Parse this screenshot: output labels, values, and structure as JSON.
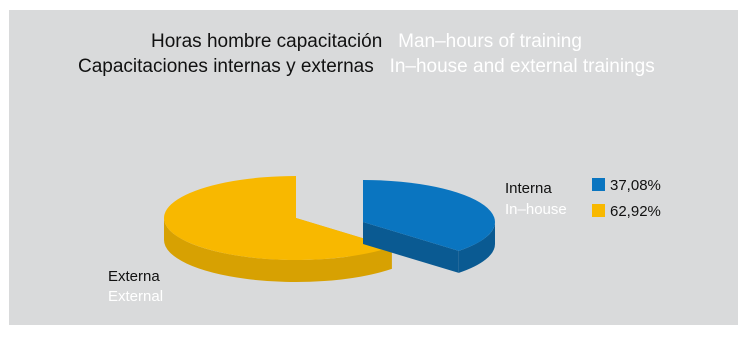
{
  "title": {
    "line1_es": "Horas hombre capacitación",
    "line1_en": "Man–hours of training",
    "line2_es": "Capacitaciones internas y externas",
    "line2_en": "In–house and external trainings"
  },
  "colors": {
    "interna": "#0a75c0",
    "interna_side": "#0a5a92",
    "externa": "#f8b800",
    "externa_side": "#d7a102",
    "background": "#d9dadb"
  },
  "chart_data": {
    "type": "pie",
    "three_d": true,
    "slices": [
      {
        "label_es": "Interna",
        "label_en": "In–house",
        "value": 37.08,
        "value_label": "37,08%"
      },
      {
        "label_es": "Externa",
        "label_en": "External",
        "value": 62.92,
        "value_label": "62,92%"
      }
    ],
    "legend_position": "right"
  }
}
